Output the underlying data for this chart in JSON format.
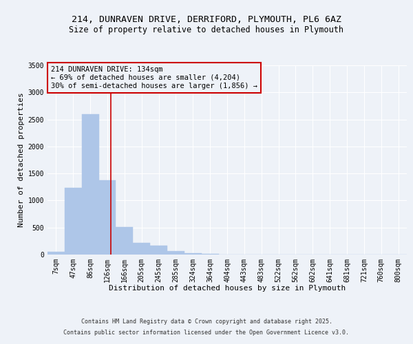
{
  "title_line1": "214, DUNRAVEN DRIVE, DERRIFORD, PLYMOUTH, PL6 6AZ",
  "title_line2": "Size of property relative to detached houses in Plymouth",
  "xlabel": "Distribution of detached houses by size in Plymouth",
  "ylabel": "Number of detached properties",
  "categories": [
    "7sqm",
    "47sqm",
    "86sqm",
    "126sqm",
    "166sqm",
    "205sqm",
    "245sqm",
    "285sqm",
    "324sqm",
    "364sqm",
    "404sqm",
    "443sqm",
    "483sqm",
    "522sqm",
    "562sqm",
    "602sqm",
    "641sqm",
    "681sqm",
    "721sqm",
    "760sqm",
    "800sqm"
  ],
  "values": [
    50,
    1230,
    2600,
    1370,
    510,
    220,
    160,
    70,
    30,
    8,
    2,
    1,
    0,
    0,
    0,
    0,
    0,
    0,
    0,
    0,
    0
  ],
  "bar_color": "#aec6e8",
  "bar_edgecolor": "#aec6e8",
  "vline_color": "#cc0000",
  "annotation_text": "214 DUNRAVEN DRIVE: 134sqm\n← 69% of detached houses are smaller (4,204)\n30% of semi-detached houses are larger (1,856) →",
  "annotation_box_color": "#cc0000",
  "ylim": [
    0,
    3500
  ],
  "yticks": [
    0,
    500,
    1000,
    1500,
    2000,
    2500,
    3000,
    3500
  ],
  "background_color": "#eef2f8",
  "grid_color": "#ffffff",
  "footer_line1": "Contains HM Land Registry data © Crown copyright and database right 2025.",
  "footer_line2": "Contains public sector information licensed under the Open Government Licence v3.0.",
  "title_fontsize": 9.5,
  "subtitle_fontsize": 8.5,
  "axis_label_fontsize": 8,
  "tick_fontsize": 7,
  "annotation_fontsize": 7.5,
  "footer_fontsize": 6
}
